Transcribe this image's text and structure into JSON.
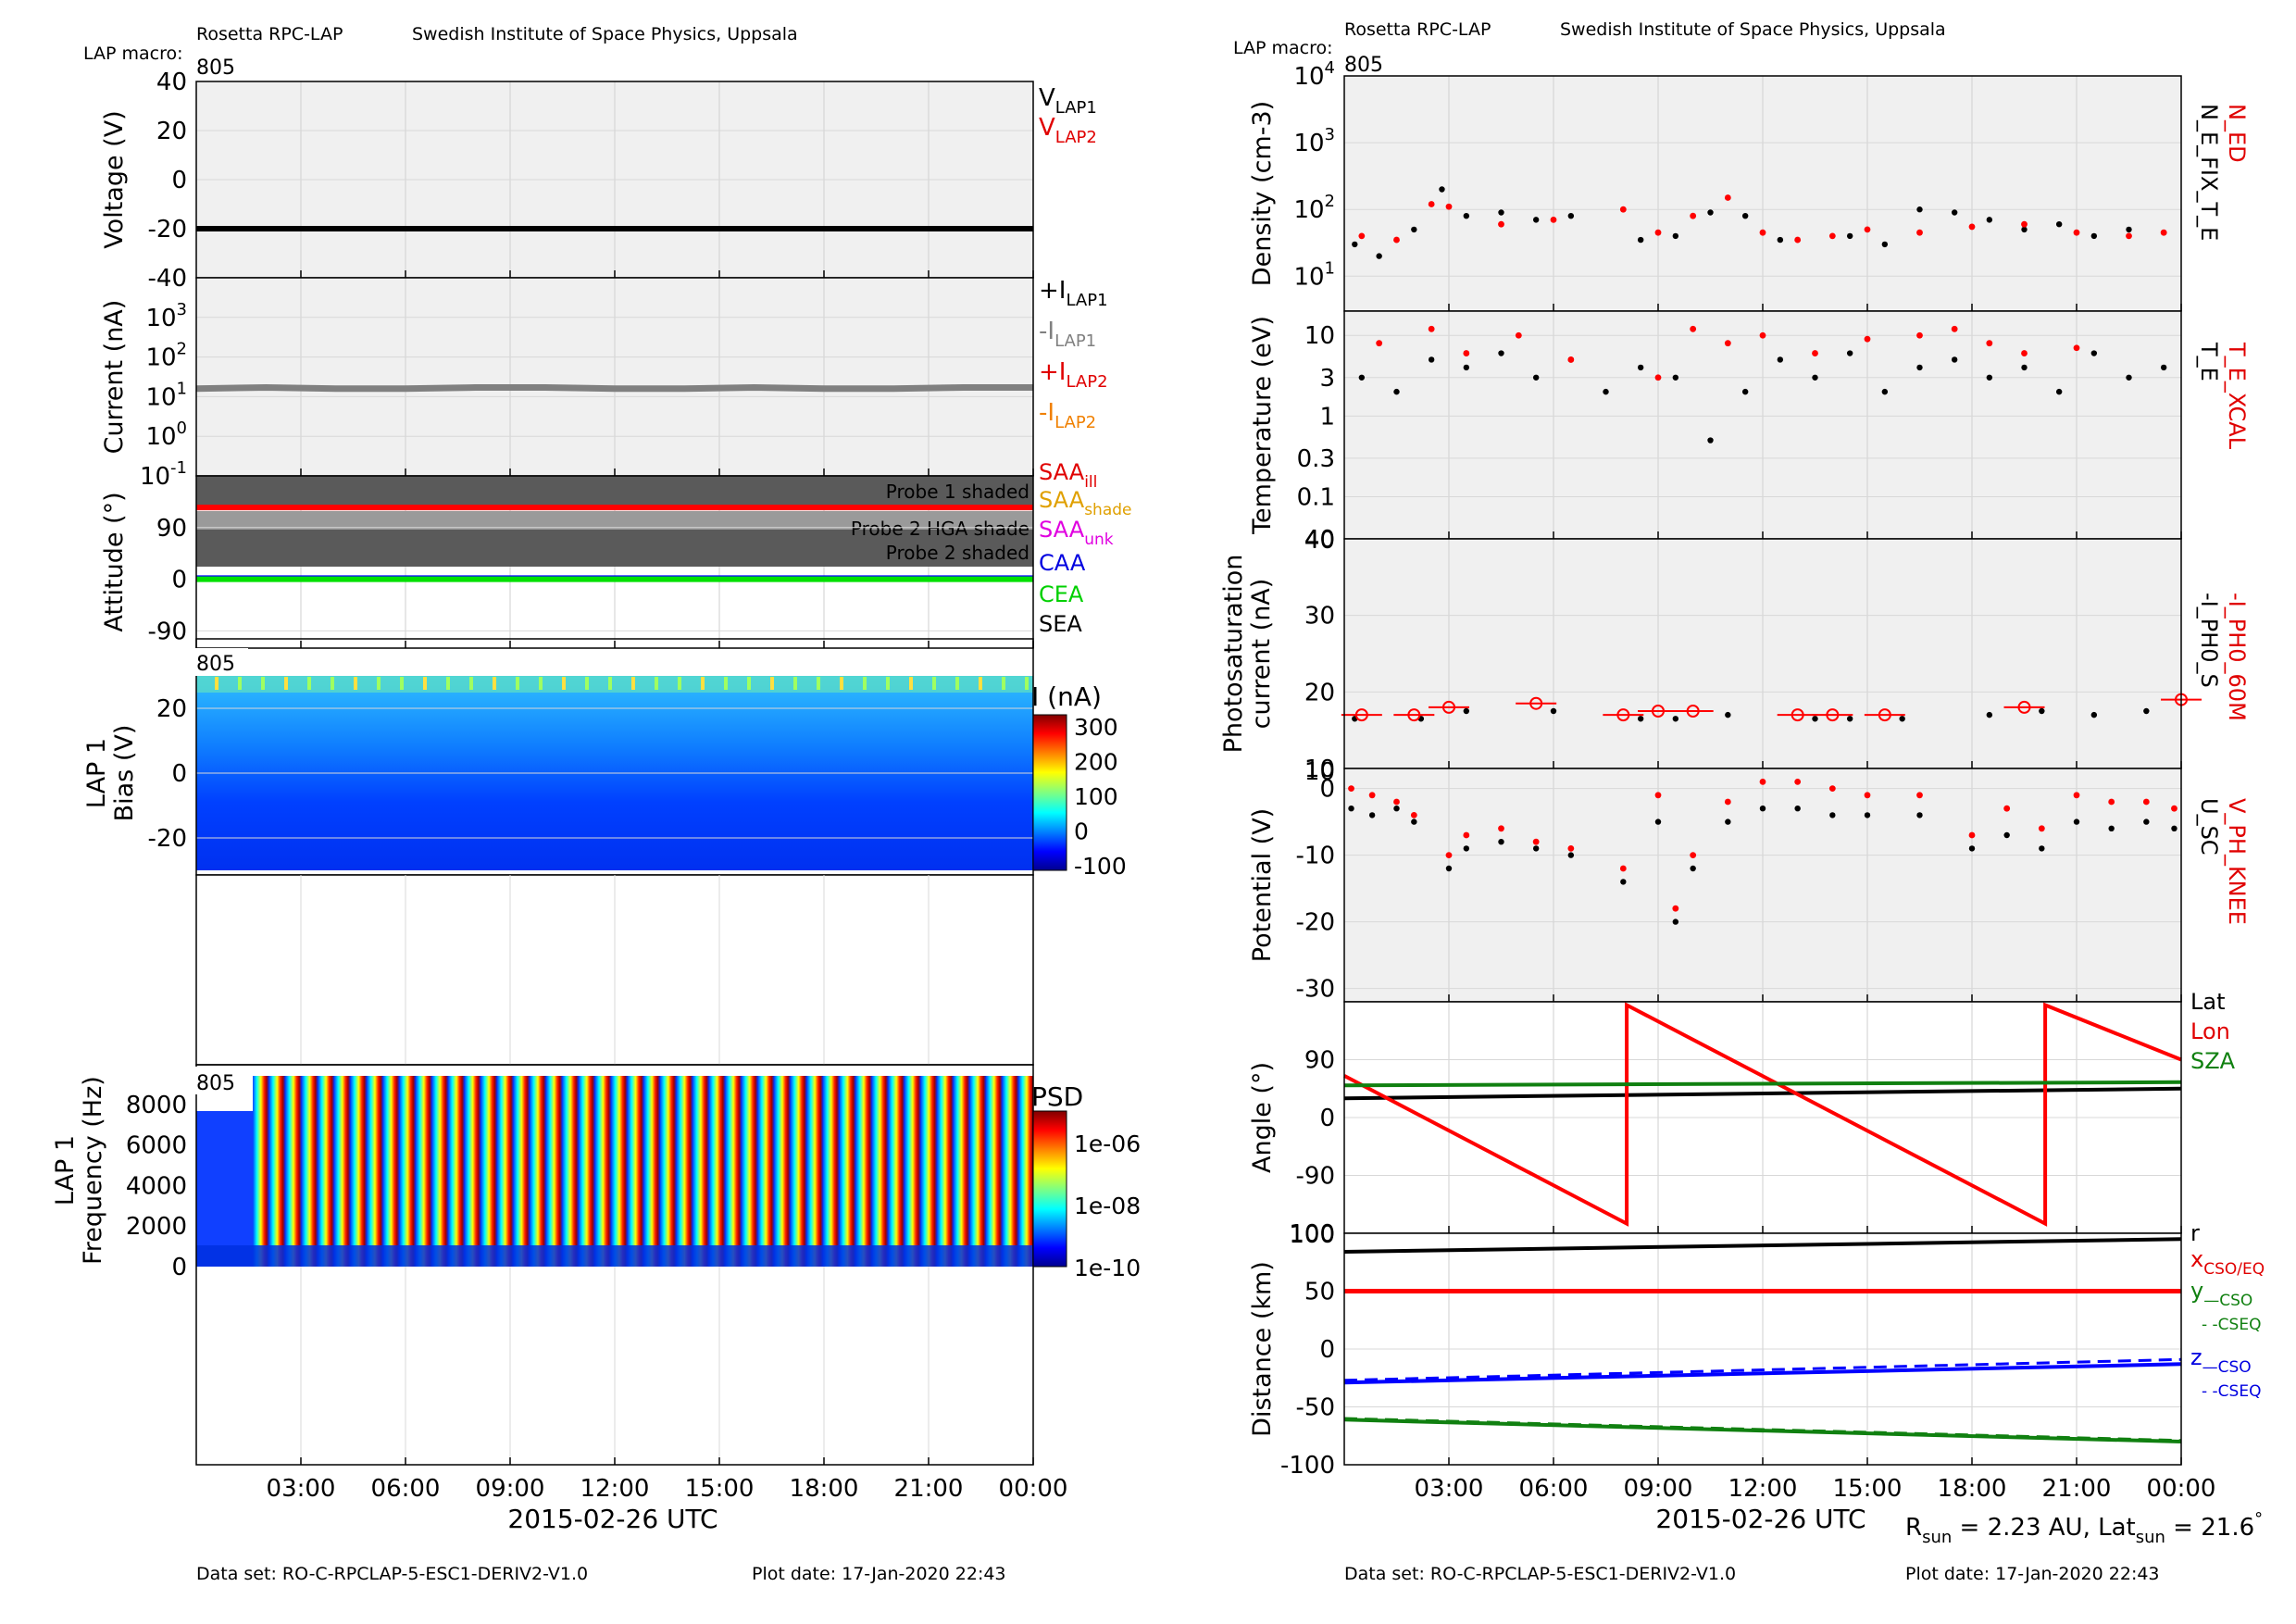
{
  "header": {
    "left_title": "Rosetta RPC-LAP",
    "left_institute": "Swedish Institute of Space Physics, Uppsala",
    "left_macro_label": "LAP macro:",
    "left_macro_value": "805",
    "right_title": "Rosetta RPC-LAP",
    "right_institute": "Swedish Institute of Space Physics, Uppsala",
    "right_macro_label": "LAP macro:",
    "right_macro_value": "805"
  },
  "footer": {
    "left_dataset": "Data set: RO-C-RPCLAP-5-ESC1-DERIV2-V1.0",
    "left_plotdate": "Plot date: 17-Jan-2020 22:43",
    "right_dataset": "Data set: RO-C-RPCLAP-5-ESC1-DERIV2-V1.0",
    "right_plotdate": "Plot date: 17-Jan-2020 22:43",
    "rsun_note": "R_sun = 2.23 AU, Lat_sun = 21.6°"
  },
  "xaxis": {
    "label": "2015-02-26 UTC",
    "ticks": [
      "03:00",
      "06:00",
      "09:00",
      "12:00",
      "15:00",
      "18:00",
      "21:00",
      "00:00"
    ],
    "tick_hours": [
      3,
      6,
      9,
      12,
      15,
      18,
      21,
      24
    ],
    "range_hours": [
      0,
      24
    ]
  },
  "chart_data": [
    {
      "id": "voltage",
      "type": "line",
      "ylabel": "Voltage (V)",
      "ylim": [
        -40,
        40
      ],
      "yticks": [
        "40",
        "20",
        "0",
        "-20",
        "-40"
      ],
      "legend": [
        "VLAP1",
        "VLAP2"
      ],
      "series": [
        {
          "name": "VLAP1",
          "x": [
            0,
            24
          ],
          "values": [
            -20,
            -20
          ]
        }
      ]
    },
    {
      "id": "current",
      "type": "line",
      "ylabel": "Current (nA)",
      "yscale": "log",
      "ylim": [
        0.1,
        10000
      ],
      "yticks": [
        "10^3",
        "10^2",
        "10^1",
        "10^0",
        "10^-1"
      ],
      "legend": [
        "+ILAP1",
        "-ILAP1",
        "+ILAP2",
        "-ILAP2"
      ],
      "series": [
        {
          "name": "-ILAP1",
          "x": [
            0,
            2,
            4,
            6,
            8,
            10,
            12,
            14,
            16,
            18,
            20,
            22,
            24
          ],
          "values": [
            16,
            17,
            16,
            16,
            17,
            17,
            16,
            16,
            17,
            16,
            16,
            17,
            17
          ]
        }
      ]
    },
    {
      "id": "attitude",
      "type": "line",
      "ylabel": "Attitude (°)",
      "ylim": [
        -120,
        180
      ],
      "yticks": [
        "90",
        "0",
        "-90"
      ],
      "shades": [
        "Probe 1 shaded",
        "Probe 2 HGA shade",
        "Probe 2 shaded"
      ],
      "legend": [
        "SAAill",
        "SAAshade",
        "SAAunk",
        "CAA",
        "CEA",
        "SEA"
      ],
      "series": [
        {
          "name": "SAAill",
          "x": [
            0,
            24
          ],
          "values": [
            125,
            125
          ]
        },
        {
          "name": "CAA",
          "x": [
            0,
            24
          ],
          "values": [
            2,
            2
          ]
        },
        {
          "name": "CEA",
          "x": [
            0,
            24
          ],
          "values": [
            0,
            0
          ]
        }
      ]
    },
    {
      "id": "bias_spectrogram",
      "type": "heatmap",
      "ylabel": "LAP 1 Bias (V)",
      "ylim": [
        -30,
        30
      ],
      "yticks": [
        "20",
        "0",
        "-20"
      ],
      "macro": "805",
      "colorbar_title": "I (nA)",
      "colorbar_ticks": [
        "300",
        "200",
        "100",
        "0",
        "-100"
      ],
      "clim": [
        -100,
        300
      ]
    },
    {
      "id": "freq_spectrogram",
      "type": "heatmap",
      "ylabel": "LAP 1 Frequency (Hz)",
      "ylim": [
        0,
        9500
      ],
      "yticks": [
        "8000",
        "6000",
        "4000",
        "2000",
        "0"
      ],
      "macro": "805",
      "colorbar_title": "PSD",
      "colorbar_ticks": [
        "1e-06",
        "1e-08",
        "1e-10"
      ]
    },
    {
      "id": "density",
      "type": "scatter",
      "ylabel": "Density (cm-3)",
      "yscale": "log",
      "ylim": [
        3,
        10000
      ],
      "yticks": [
        "10^4",
        "10^3",
        "10^2",
        "10^1"
      ],
      "legend": [
        "N_ED",
        "N_E_FIX_T_E"
      ],
      "series": [
        {
          "name": "N_ED",
          "x": [
            0.5,
            1.5,
            2.5,
            3.0,
            4.5,
            6.0,
            8.0,
            9.0,
            10.0,
            11.0,
            12.0,
            13.0,
            14.0,
            15.0,
            16.5,
            18.0,
            19.5,
            21.0,
            22.5,
            23.5
          ],
          "values": [
            40,
            35,
            120,
            110,
            60,
            70,
            100,
            45,
            80,
            150,
            45,
            35,
            40,
            50,
            45,
            55,
            60,
            45,
            40,
            45
          ]
        },
        {
          "name": "N_E_FIX_T_E",
          "x": [
            0.3,
            1.0,
            2.0,
            2.8,
            3.5,
            4.5,
            5.5,
            6.5,
            8.5,
            9.5,
            10.5,
            11.5,
            12.5,
            14.5,
            15.5,
            16.5,
            17.5,
            18.5,
            19.5,
            20.5,
            21.5,
            22.5,
            23.5
          ],
          "values": [
            30,
            20,
            50,
            200,
            80,
            90,
            70,
            80,
            35,
            40,
            90,
            80,
            35,
            40,
            30,
            100,
            90,
            70,
            50,
            60,
            40,
            50,
            45
          ]
        }
      ]
    },
    {
      "id": "temperature",
      "type": "scatter",
      "ylabel": "Temperature (eV)",
      "yscale": "log",
      "ylim": [
        0.03,
        20
      ],
      "yticks": [
        "10",
        "3",
        "1",
        "0.3",
        "0.1"
      ],
      "legend": [
        "T_E_XCAL",
        "T_E"
      ],
      "series": [
        {
          "name": "T_E_XCAL",
          "x": [
            1.0,
            2.5,
            3.5,
            5.0,
            6.5,
            9.0,
            10.0,
            11.0,
            12.0,
            13.5,
            15.0,
            16.5,
            17.5,
            18.5,
            19.5,
            21.0
          ],
          "values": [
            8,
            12,
            6,
            10,
            5,
            3,
            12,
            8,
            10,
            6,
            9,
            10,
            12,
            8,
            6,
            7
          ]
        },
        {
          "name": "T_E",
          "x": [
            0.5,
            1.5,
            2.5,
            3.5,
            4.5,
            5.5,
            6.5,
            7.5,
            8.5,
            9.5,
            10.5,
            11.5,
            12.5,
            13.5,
            14.5,
            15.5,
            16.5,
            17.5,
            18.5,
            19.5,
            20.5,
            21.5,
            22.5,
            23.5
          ],
          "values": [
            3,
            2,
            5,
            4,
            6,
            3,
            5,
            2,
            4,
            3,
            0.5,
            2,
            5,
            3,
            6,
            2,
            4,
            5,
            3,
            4,
            2,
            6,
            3,
            4
          ]
        }
      ]
    },
    {
      "id": "photosat",
      "type": "scatter",
      "ylabel": "Photosaturation current (nA)",
      "ylim": [
        10,
        40
      ],
      "yticks": [
        "40",
        "30",
        "20",
        "10"
      ],
      "legend": [
        "-I_PH0_60M",
        "-I_PH0_S"
      ],
      "series": [
        {
          "name": "-I_PH0_60M",
          "x": [
            0.5,
            2.0,
            3.0,
            5.5,
            8.0,
            9.0,
            10.0,
            13.0,
            14.0,
            15.5,
            19.5,
            24.0
          ],
          "values": [
            17,
            17,
            18,
            18.5,
            17,
            17.5,
            17.5,
            17,
            17,
            17,
            18,
            19
          ]
        },
        {
          "name": "-I_PH0_S",
          "x": [
            0.3,
            2.2,
            3.5,
            6.0,
            8.5,
            9.5,
            11.0,
            13.5,
            14.5,
            16.0,
            18.5,
            20.0,
            21.5,
            23.0
          ],
          "values": [
            16.5,
            16.5,
            17.5,
            17.5,
            16.5,
            16.5,
            17,
            16.5,
            16.5,
            16.5,
            17,
            17.5,
            17,
            17.5
          ]
        }
      ]
    },
    {
      "id": "potential",
      "type": "scatter",
      "ylabel": "Potential (V)",
      "ylim": [
        -32,
        3
      ],
      "yticks": [
        "0",
        "-10",
        "-20",
        "-30"
      ],
      "legend": [
        "V_PH_KNEE",
        "U_SC"
      ],
      "series": [
        {
          "name": "V_PH_KNEE",
          "x": [
            0.2,
            0.8,
            1.5,
            2.0,
            3.0,
            3.5,
            4.5,
            5.5,
            6.5,
            8.0,
            9.0,
            9.5,
            10.0,
            11.0,
            12.0,
            13.0,
            14.0,
            15.0,
            16.5,
            18.0,
            19.0,
            20.0,
            21.0,
            22.0,
            23.0,
            23.8
          ],
          "values": [
            0,
            -1,
            -2,
            -4,
            -10,
            -7,
            -6,
            -8,
            -9,
            -12,
            -1,
            -18,
            -10,
            -2,
            1,
            1,
            0,
            -1,
            -1,
            -7,
            -3,
            -6,
            -1,
            -2,
            -2,
            -3
          ]
        },
        {
          "name": "U_SC",
          "x": [
            0.2,
            0.8,
            1.5,
            2.0,
            3.0,
            3.5,
            4.5,
            5.5,
            6.5,
            8.0,
            9.0,
            9.5,
            10.0,
            11.0,
            12.0,
            13.0,
            14.0,
            15.0,
            16.5,
            18.0,
            19.0,
            20.0,
            21.0,
            22.0,
            23.0,
            23.8
          ],
          "values": [
            -3,
            -4,
            -3,
            -5,
            -12,
            -9,
            -8,
            -9,
            -10,
            -14,
            -5,
            -20,
            -12,
            -5,
            -3,
            -3,
            -4,
            -4,
            -4,
            -9,
            -7,
            -9,
            -5,
            -6,
            -5,
            -6
          ]
        }
      ]
    },
    {
      "id": "angle",
      "type": "line",
      "ylabel": "Angle (°)",
      "ylim": [
        -180,
        180
      ],
      "yticks": [
        "90",
        "0",
        "-90"
      ],
      "ytick_extra": "100",
      "legend": [
        "Lat",
        "Lon",
        "SZA"
      ],
      "series": [
        {
          "name": "Lat",
          "x": [
            0,
            24
          ],
          "values": [
            30,
            45
          ]
        },
        {
          "name": "Lon",
          "x": [
            0,
            8.1,
            8.1,
            20.1,
            20.1,
            24
          ],
          "values": [
            65,
            -165,
            175,
            -165,
            175,
            90
          ]
        },
        {
          "name": "SZA",
          "x": [
            0,
            24
          ],
          "values": [
            50,
            55
          ]
        }
      ]
    },
    {
      "id": "distance",
      "type": "line",
      "ylabel": "Distance (km)",
      "ylim": [
        -100,
        100
      ],
      "yticks": [
        "100",
        "50",
        "0",
        "-50",
        "-100"
      ],
      "legend": [
        "r",
        "xCSO/EQ",
        "y—CSO",
        "- -CSEQ",
        "z—CSO",
        "- -CSEQ"
      ],
      "series": [
        {
          "name": "r",
          "x": [
            0,
            24
          ],
          "values": [
            84,
            95
          ]
        },
        {
          "name": "xCSO/EQ",
          "x": [
            0,
            24
          ],
          "values": [
            50,
            50
          ]
        },
        {
          "name": "yCSO",
          "x": [
            0,
            24
          ],
          "values": [
            -61,
            -80
          ]
        },
        {
          "name": "yCSEQ",
          "x": [
            0,
            24
          ],
          "values": [
            -60,
            -79
          ]
        },
        {
          "name": "zCSO",
          "x": [
            0,
            24
          ],
          "values": [
            -29,
            -13
          ]
        },
        {
          "name": "zCSEQ",
          "x": [
            0,
            24
          ],
          "values": [
            -27,
            -9
          ]
        }
      ]
    }
  ]
}
